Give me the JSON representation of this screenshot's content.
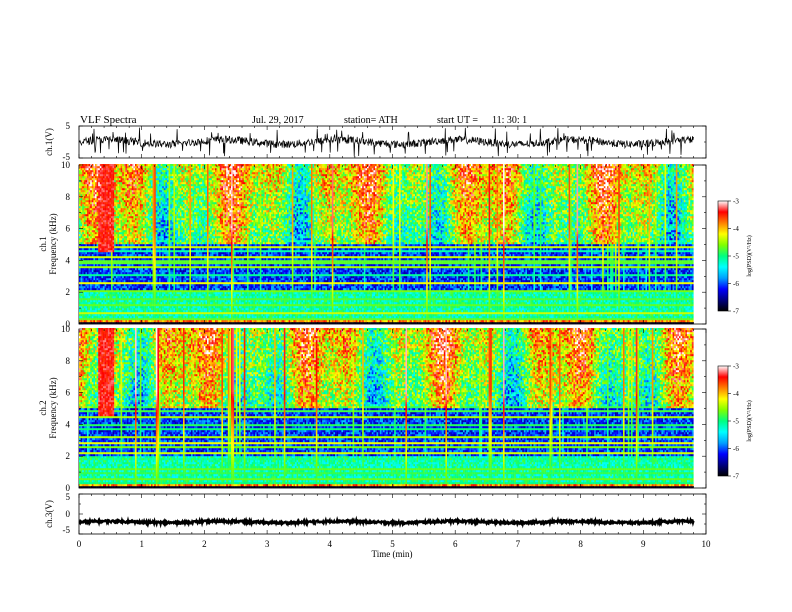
{
  "header": {
    "title": "VLF  Spectra",
    "date": "Jul.  29,  2017",
    "station": "station= ATH",
    "start_label": "start  UT  =",
    "start_time": "11:  30:  1"
  },
  "chart_data": [
    {
      "id": "ch1-waveform",
      "type": "line",
      "ylabel": "ch.1(V)",
      "ylim": [
        -5,
        5
      ],
      "yticks": [
        "5",
        "-5"
      ],
      "xlim": [
        0,
        10
      ],
      "data_extent_min": 9.8,
      "baseline": 0,
      "amplitude": 1.2,
      "spike_amplitude": 4.5,
      "color": "#000000"
    },
    {
      "id": "ch1-spectrogram",
      "type": "heatmap",
      "ylabel_lines": [
        "ch.1",
        "Frequency  (kHz)"
      ],
      "ylim": [
        0,
        10
      ],
      "yticks": [
        "0",
        "2",
        "4",
        "6",
        "8",
        "10"
      ],
      "xlim": [
        0,
        10
      ],
      "data_extent_min": 9.8,
      "colorbar": {
        "label": "log(PSD)(V²/Hz)",
        "range": [
          -7,
          -3
        ],
        "ticks": [
          "-3",
          "-4",
          "-5",
          "-6",
          "-7"
        ]
      },
      "description_levels": {
        "low_band_khz": [
          0,
          2
        ],
        "quiet_band_khz": [
          2,
          5
        ],
        "upper_band_khz": [
          5,
          10
        ]
      }
    },
    {
      "id": "ch2-spectrogram",
      "type": "heatmap",
      "ylabel_lines": [
        "ch.2",
        "Frequency  (kHz)"
      ],
      "ylim": [
        0,
        10
      ],
      "yticks": [
        "0",
        "2",
        "4",
        "6",
        "8",
        "10"
      ],
      "xlim": [
        0,
        10
      ],
      "data_extent_min": 9.8,
      "colorbar": {
        "label": "log(PSD)(V²/Hz)",
        "range": [
          -7,
          -3
        ],
        "ticks": [
          "-3",
          "-4",
          "-5",
          "-6",
          "-7"
        ]
      }
    },
    {
      "id": "ch3-waveform",
      "type": "line",
      "ylabel": "ch.3(V)",
      "ylim": [
        -5,
        5
      ],
      "yticks": [
        "5",
        "0",
        "-5"
      ],
      "xlim": [
        0,
        10
      ],
      "data_extent_min": 9.8,
      "baseline": -2,
      "amplitude": 0.3,
      "color": "#000000"
    }
  ],
  "xaxis": {
    "label": "Time  (min)",
    "ticks": [
      "0",
      "1",
      "2",
      "3",
      "4",
      "5",
      "6",
      "7",
      "8",
      "9",
      "10"
    ],
    "range": [
      0,
      10
    ]
  },
  "colors": {
    "colormap": [
      "#000000",
      "#000080",
      "#0000ff",
      "#00a0ff",
      "#00ffff",
      "#00ff80",
      "#80ff00",
      "#ffff00",
      "#ff8000",
      "#ff0000",
      "#ffffff"
    ]
  }
}
